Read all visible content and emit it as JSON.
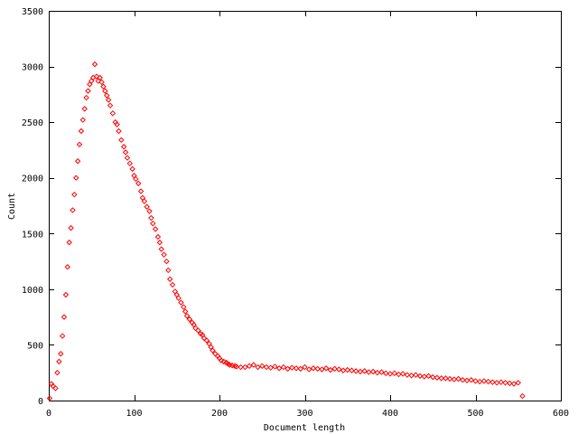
{
  "chart_data": {
    "type": "scatter",
    "title": "",
    "xlabel": "Document length",
    "ylabel": "Count",
    "xlim": [
      0,
      600
    ],
    "ylim": [
      0,
      3500
    ],
    "x_ticks": [
      0,
      100,
      200,
      300,
      400,
      500,
      600
    ],
    "y_ticks": [
      0,
      500,
      1000,
      1500,
      2000,
      2500,
      3000,
      3500
    ],
    "grid": false,
    "legend": "none",
    "marker": "diamond",
    "color": "#ff0000",
    "series": [
      {
        "x": [
          1,
          3,
          5,
          8,
          10,
          12,
          14,
          16,
          18,
          20,
          22,
          24,
          26,
          28,
          30,
          32,
          34,
          36,
          38,
          40,
          42,
          44,
          46,
          48,
          50,
          52,
          54,
          56,
          58,
          60,
          62,
          64,
          66,
          68,
          70,
          72,
          75,
          78,
          80,
          82,
          85,
          88,
          90,
          92,
          95,
          98,
          100,
          102,
          105,
          108,
          110,
          112,
          115,
          118,
          120,
          122,
          125,
          128,
          130,
          132,
          135,
          138,
          140,
          142,
          145,
          148,
          150,
          152,
          155,
          158,
          160,
          162,
          165,
          168,
          170,
          172,
          175,
          178,
          180,
          182,
          185,
          188,
          190,
          192,
          195,
          198,
          200,
          202,
          205,
          208,
          210,
          212,
          215,
          218,
          220,
          225,
          230,
          235,
          240,
          245,
          250,
          255,
          260,
          265,
          270,
          275,
          280,
          285,
          290,
          295,
          300,
          305,
          310,
          315,
          320,
          325,
          330,
          335,
          340,
          345,
          350,
          355,
          360,
          365,
          370,
          375,
          380,
          385,
          390,
          395,
          400,
          405,
          410,
          415,
          420,
          425,
          430,
          435,
          440,
          445,
          450,
          455,
          460,
          465,
          470,
          475,
          480,
          485,
          490,
          495,
          500,
          505,
          510,
          515,
          520,
          525,
          530,
          535,
          540,
          545,
          550,
          555
        ],
        "y": [
          20,
          150,
          130,
          110,
          250,
          350,
          420,
          580,
          750,
          950,
          1200,
          1420,
          1550,
          1710,
          1850,
          2000,
          2150,
          2300,
          2420,
          2520,
          2620,
          2720,
          2780,
          2840,
          2870,
          2900,
          3020,
          2910,
          2870,
          2900,
          2860,
          2820,
          2780,
          2740,
          2700,
          2650,
          2580,
          2500,
          2480,
          2420,
          2340,
          2280,
          2230,
          2180,
          2130,
          2080,
          2020,
          1990,
          1950,
          1880,
          1820,
          1790,
          1740,
          1700,
          1640,
          1590,
          1540,
          1470,
          1420,
          1360,
          1310,
          1250,
          1170,
          1090,
          1040,
          980,
          950,
          920,
          880,
          840,
          800,
          760,
          730,
          700,
          680,
          650,
          630,
          600,
          590,
          560,
          540,
          510,
          480,
          450,
          420,
          400,
          380,
          360,
          350,
          340,
          330,
          320,
          315,
          310,
          305,
          300,
          300,
          310,
          320,
          300,
          310,
          300,
          295,
          305,
          290,
          300,
          285,
          295,
          290,
          285,
          300,
          280,
          290,
          285,
          280,
          290,
          275,
          285,
          280,
          270,
          275,
          270,
          265,
          260,
          265,
          255,
          260,
          250,
          255,
          245,
          240,
          245,
          235,
          240,
          230,
          225,
          230,
          220,
          215,
          220,
          210,
          205,
          200,
          200,
          195,
          190,
          195,
          185,
          180,
          185,
          175,
          170,
          175,
          170,
          165,
          160,
          165,
          160,
          155,
          150,
          160,
          40
        ]
      }
    ]
  }
}
